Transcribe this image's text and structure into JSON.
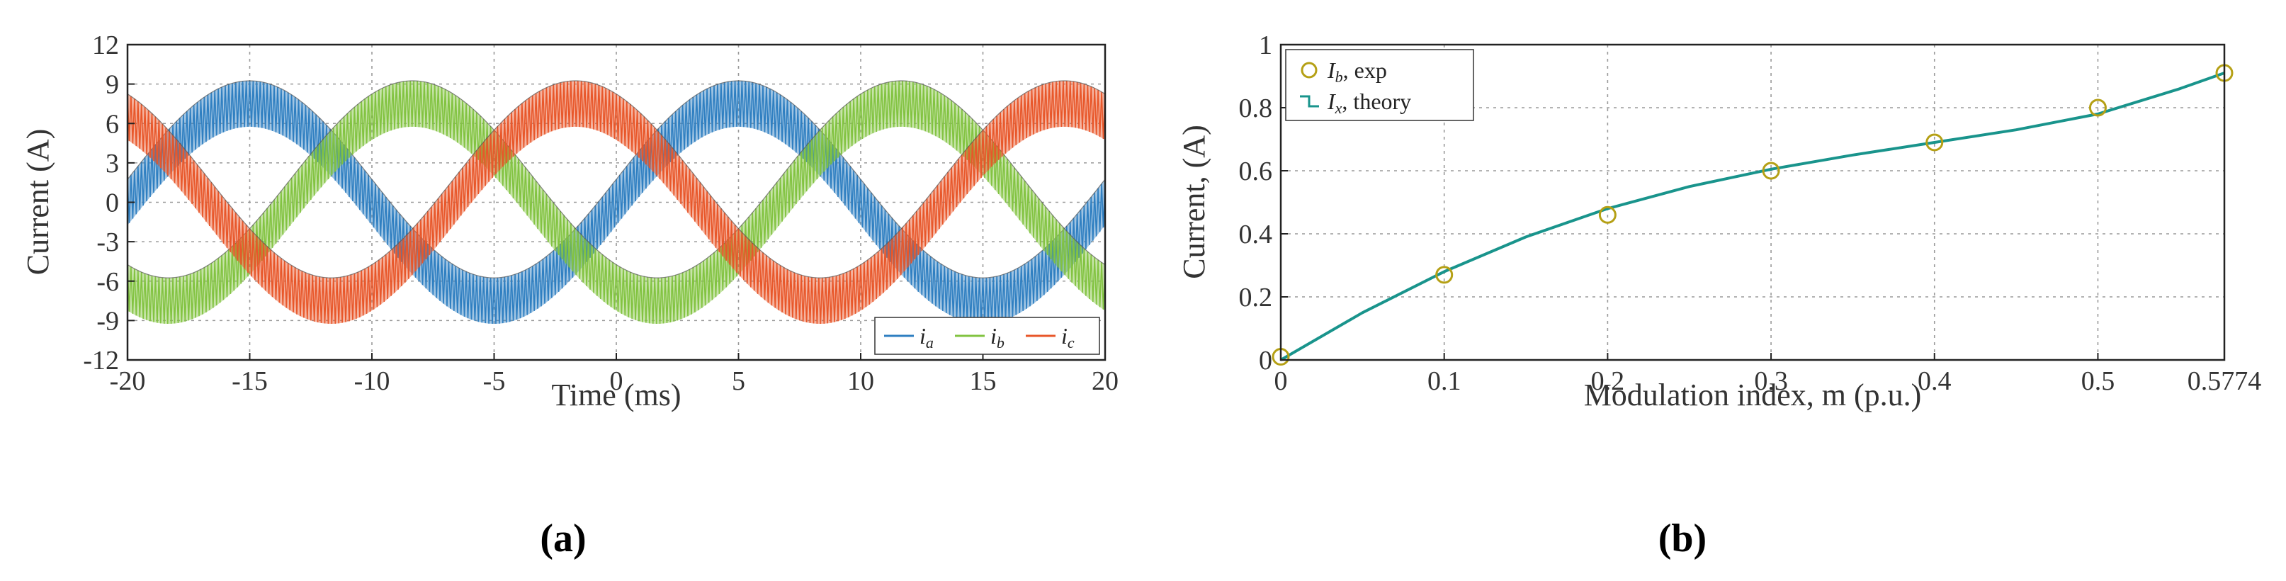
{
  "chart_data": [
    {
      "type": "line",
      "panel_label": "(a)",
      "xlabel": "Time (ms)",
      "ylabel": "Current (A)",
      "xlim": [
        -20,
        20
      ],
      "ylim": [
        -12,
        12
      ],
      "xticks": [
        -20,
        -15,
        -10,
        -5,
        0,
        5,
        10,
        15,
        20
      ],
      "yticks": [
        -12,
        -9,
        -6,
        -3,
        0,
        3,
        6,
        9,
        12
      ],
      "grid": true,
      "legend_position": "bottom-right",
      "fundamental_amplitude_A": 7.5,
      "ripple_peak_to_peak_A": 3.5,
      "period_ms": 20,
      "series": [
        {
          "name": "i_a",
          "legend_label": "i",
          "legend_sub": "a",
          "color": "#2f7fc1",
          "phase_deg": 0
        },
        {
          "name": "i_b",
          "legend_label": "i",
          "legend_sub": "b",
          "color": "#82c341",
          "phase_deg": -120
        },
        {
          "name": "i_c",
          "legend_label": "i",
          "legend_sub": "c",
          "color": "#e8572a",
          "phase_deg": 120
        }
      ]
    },
    {
      "type": "line",
      "panel_label": "(b)",
      "xlabel": "Modulation index, m (p.u.)",
      "ylabel": "Current, (A)",
      "xlim": [
        0,
        0.5774
      ],
      "ylim": [
        0,
        1
      ],
      "xticks": [
        "0",
        "0.1",
        "0.2",
        "0.3",
        "0.4",
        "0.5",
        "0.5774"
      ],
      "yticks": [
        "0",
        "0.2",
        "0.4",
        "0.6",
        "0.8",
        "1"
      ],
      "grid": true,
      "legend_position": "top-left",
      "series": [
        {
          "name": "Î_b, exp",
          "legend_label": "I",
          "legend_sub": "b",
          "legend_suffix": ", exp",
          "style": "markers",
          "color": "#b5a015",
          "x": [
            0,
            0.1,
            0.2,
            0.3,
            0.4,
            0.5,
            0.5774
          ],
          "y": [
            0.01,
            0.27,
            0.46,
            0.6,
            0.69,
            0.8,
            0.91
          ]
        },
        {
          "name": "Î_x, theory",
          "legend_label": "I",
          "legend_sub": "x",
          "legend_suffix": ", theory",
          "style": "line",
          "color": "#19948c",
          "x": [
            0,
            0.05,
            0.1,
            0.15,
            0.2,
            0.25,
            0.3,
            0.35,
            0.4,
            0.45,
            0.5,
            0.55,
            0.5774
          ],
          "y": [
            0,
            0.15,
            0.28,
            0.39,
            0.48,
            0.55,
            0.605,
            0.65,
            0.69,
            0.73,
            0.78,
            0.86,
            0.91
          ]
        }
      ]
    }
  ]
}
